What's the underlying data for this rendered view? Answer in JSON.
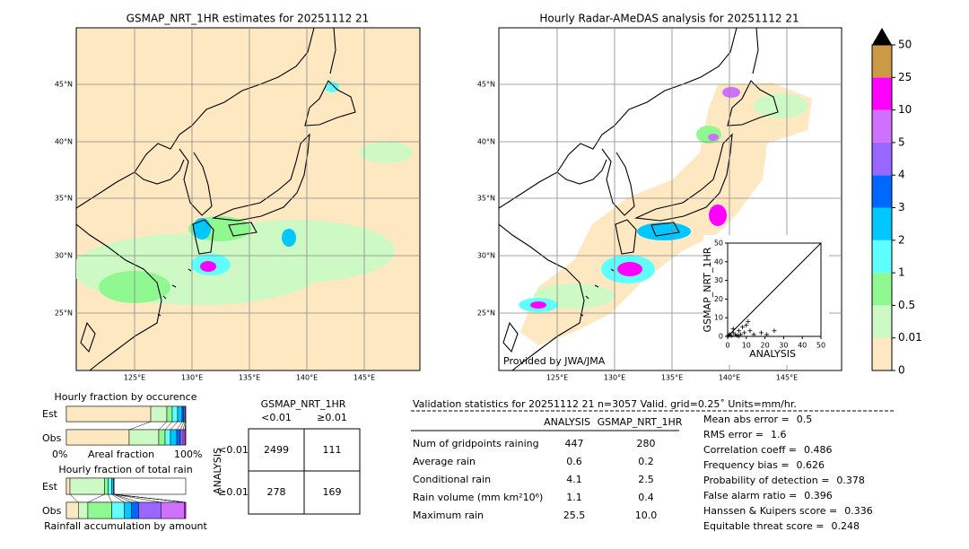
{
  "left_map": {
    "title": "GSMAP_NRT_1HR estimates for 20251112 21",
    "lat_labels": [
      "45°N",
      "40°N",
      "35°N",
      "30°N",
      "25°N"
    ],
    "lon_labels": [
      "125°E",
      "130°E",
      "135°E",
      "140°E",
      "145°E"
    ]
  },
  "right_map": {
    "title": "Hourly Radar-AMeDAS analysis for 20251112 21",
    "credit": "Provided by JWA/JMA",
    "lat_labels": [
      "45°N",
      "40°N",
      "35°N",
      "30°N",
      "25°N"
    ],
    "lon_labels": [
      "125°E",
      "130°E",
      "135°E",
      "140°E",
      "145°E"
    ]
  },
  "colorbar": {
    "levels": [
      0,
      0.01,
      0.5,
      1,
      2,
      3,
      4,
      5,
      10,
      25,
      50
    ],
    "colors": [
      "#fde8c2",
      "#cdf9c4",
      "#90f890",
      "#60ffff",
      "#00c8ff",
      "#0068ff",
      "#9966ff",
      "#d070ff",
      "#ff00ff",
      "#cc9944"
    ],
    "extend_color": "#000000"
  },
  "scatter": {
    "xlabel": "ANALYSIS",
    "ylabel": "GSMAP_NRT_1HR",
    "xlim": [
      0,
      50
    ],
    "ylim": [
      0,
      50
    ],
    "xticks": [
      0,
      10,
      20,
      30,
      40,
      50
    ],
    "yticks": [
      0,
      10,
      20,
      30,
      40,
      50
    ],
    "x": [
      0.5,
      1,
      2,
      3,
      4,
      5,
      6,
      7,
      8,
      9,
      10,
      12,
      14,
      18,
      21,
      25,
      3,
      6,
      11
    ],
    "y": [
      0.5,
      1,
      0.3,
      2,
      1,
      0.5,
      3,
      1,
      5,
      2,
      6,
      3,
      1,
      2,
      1,
      3,
      4,
      0.2,
      8
    ]
  },
  "occurrence": {
    "title": "Hourly fraction by occurence",
    "rows": [
      "Est",
      "Obs"
    ],
    "axis_left": "0%",
    "axis_label": "Areal fraction",
    "axis_right": "100%",
    "est": [
      70.7,
      13.5,
      4.5,
      4.5,
      3.8,
      1.5,
      1.0,
      0.5,
      0,
      0
    ],
    "obs": [
      52.6,
      24.8,
      5.3,
      4.5,
      5.3,
      3.0,
      2.3,
      1.5,
      0.7,
      0
    ]
  },
  "total_rain": {
    "title": "Hourly fraction of total rain",
    "rows": [
      "Est",
      "Obs"
    ],
    "xlabel": "Rainfall accumulation by amount",
    "est": [
      3,
      29,
      3,
      3,
      1.5,
      0.5,
      0,
      0,
      0,
      0
    ],
    "obs": [
      10,
      8,
      20,
      10.5,
      6,
      6,
      19,
      19.5,
      1,
      0
    ]
  },
  "contingency": {
    "title": "GSMAP_NRT_1HR",
    "columns": [
      "<0.01",
      "≥0.01"
    ],
    "row_axis": "ANALYSIS",
    "rows": [
      "<0.01",
      "≥0.01"
    ],
    "cells": [
      [
        2499,
        111
      ],
      [
        278,
        169
      ]
    ]
  },
  "validation": {
    "header": "Validation statistics for 20251112 21  n=3057 Valid. grid=0.25˚ Units=mm/hr.",
    "columns": [
      "ANALYSIS",
      "GSMAP_NRT_1HR"
    ],
    "rows": [
      [
        "Num of gridpoints raining",
        "447",
        "280"
      ],
      [
        "Average rain",
        "0.6",
        "0.2"
      ],
      [
        "Conditional rain",
        "4.1",
        "2.5"
      ],
      [
        "Rain volume (mm km²10⁶)",
        "1.1",
        "0.4"
      ],
      [
        "Maximum rain",
        "25.5",
        "10.0"
      ]
    ],
    "scores": [
      [
        "Mean abs error =",
        "0.5"
      ],
      [
        "RMS error =",
        "1.6"
      ],
      [
        "Correlation coeff =",
        "0.486"
      ],
      [
        "Frequency bias =",
        "0.626"
      ],
      [
        "Probability of detection =",
        "0.378"
      ],
      [
        "False alarm ratio =",
        "0.396"
      ],
      [
        "Hanssen & Kuipers score =",
        "0.336"
      ],
      [
        "Equitable threat score =",
        "0.248"
      ]
    ]
  }
}
